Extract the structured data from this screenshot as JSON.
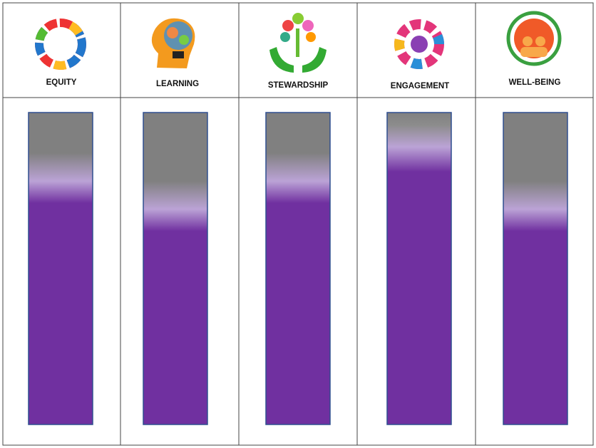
{
  "columns": [
    {
      "label": "EQUITY"
    },
    {
      "label": "LEARNING"
    },
    {
      "label": "STEWARDSHIP"
    },
    {
      "label": "ENGAGEMENT"
    },
    {
      "label": "WELL-BEING"
    }
  ]
}
